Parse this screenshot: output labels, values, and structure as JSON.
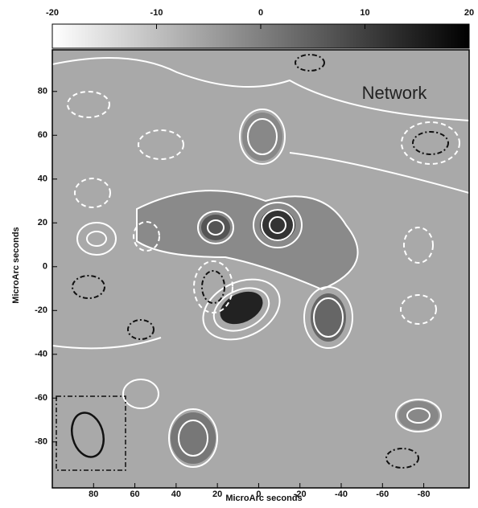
{
  "chart_data": {
    "type": "image",
    "x_label": "MicroArc seconds",
    "y_label": "MicroArc seconds",
    "annotation": "Network",
    "xlim": [
      100,
      -102
    ],
    "xticks": [
      80,
      60,
      40,
      20,
      0,
      -20,
      -40,
      -60,
      -80
    ],
    "ylim": [
      -101,
      99
    ],
    "yticks": [
      -80,
      -60,
      -40,
      -20,
      0,
      20,
      40,
      60,
      80
    ],
    "colorbar": {
      "lim": [
        -20,
        20
      ],
      "ticks": [
        -20,
        -10,
        0,
        10,
        20
      ],
      "colors": [
        "#ffffff",
        "#000000"
      ]
    }
  }
}
